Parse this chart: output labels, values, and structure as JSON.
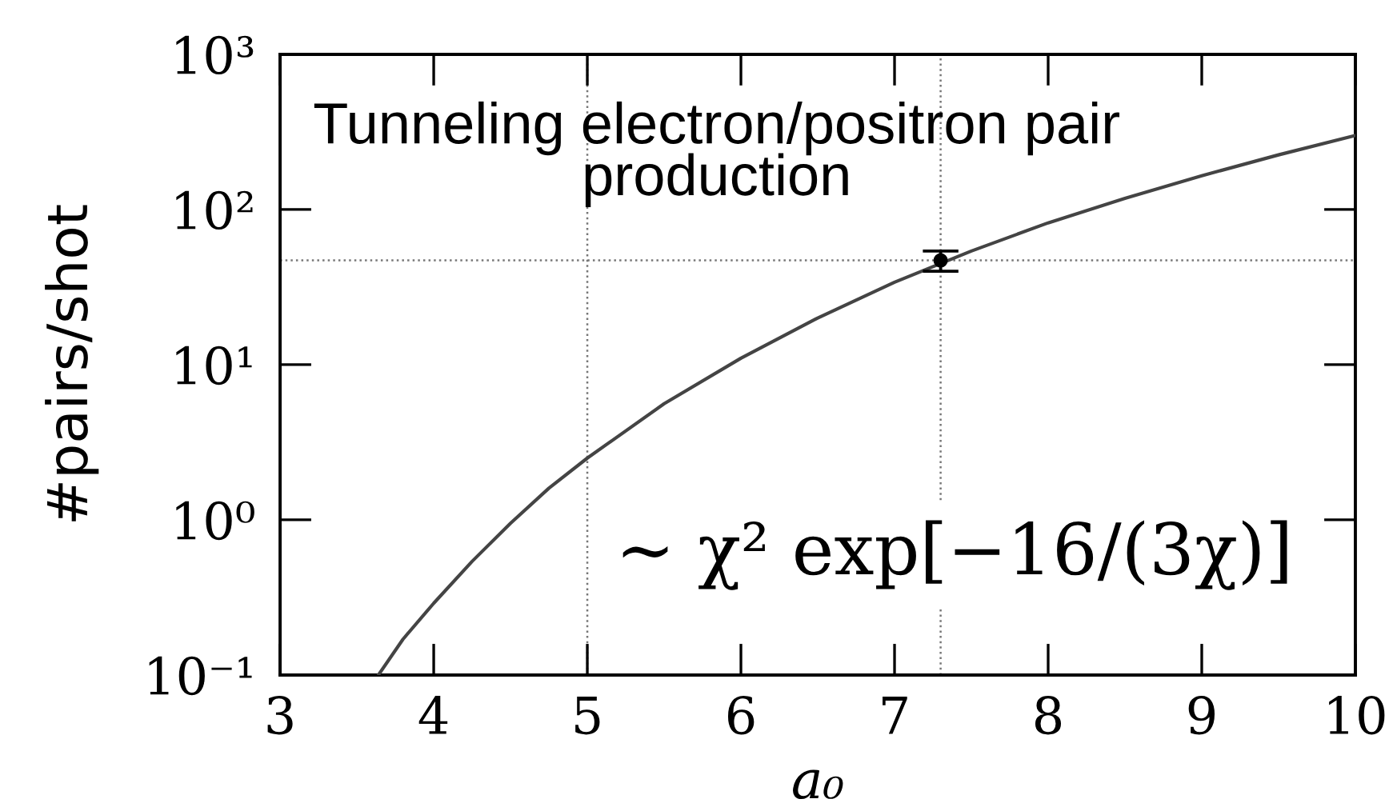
{
  "chart_data": {
    "type": "line",
    "xlabel": "a₀",
    "ylabel": "#pairs/shot",
    "annotations": [
      "Tunneling electron/positron pair\nproduction",
      "∼ χ² exp[−16/(3χ)]"
    ],
    "log": "y",
    "xlim": [
      3,
      10
    ],
    "ylim": [
      0.1,
      1000
    ],
    "xticks": [
      3,
      4,
      5,
      6,
      7,
      8,
      9,
      10
    ],
    "yticks": [
      {
        "value": 0.1,
        "label": "10⁻¹"
      },
      {
        "value": 1,
        "label": "10⁰"
      },
      {
        "value": 10,
        "label": "10¹"
      },
      {
        "value": 100,
        "label": "10²"
      },
      {
        "value": 1000,
        "label": "10³"
      }
    ],
    "series": [
      {
        "color": "#444444",
        "x": [
          3.64,
          3.8,
          4,
          4.25,
          4.5,
          4.75,
          5,
          5.5,
          6,
          6.5,
          7,
          7.5,
          8,
          8.5,
          9,
          9.5,
          10
        ],
        "values": [
          0.1,
          0.17,
          0.29,
          0.54,
          0.95,
          1.6,
          2.5,
          5.6,
          11,
          20,
          34,
          54,
          82,
          118,
          165,
          225,
          300
        ]
      },
      {
        "type": "scatter",
        "color": "#000000",
        "x": [
          7.3
        ],
        "values": [
          47
        ],
        "errors": [
          [
            40,
            54
          ]
        ],
        "marker": "circle"
      }
    ],
    "ref_lines": [
      {
        "axis": "x",
        "value": 5,
        "line_style": "dotted",
        "color": "#777777"
      },
      {
        "axis": "x",
        "value": 7.3,
        "line_style": "dotted",
        "color": "#777777"
      },
      {
        "axis": "y",
        "value": 47,
        "line_style": "dotted",
        "color": "#777777"
      }
    ]
  }
}
